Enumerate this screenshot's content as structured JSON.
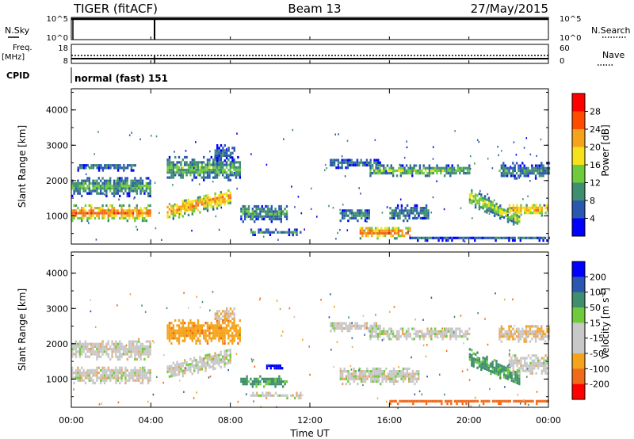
{
  "header": {
    "radar": "TIGER (fitACF)",
    "beam": "Beam 13",
    "date": "27/May/2015"
  },
  "top_panels": {
    "nsky_label": "N.Sky",
    "nsky_ticks": [
      "10^5",
      "10^0"
    ],
    "nsearch_label": "N.Search",
    "nsearch_ticks": [
      "10^5",
      "10^0"
    ],
    "freq_label": "Freq.",
    "freq_unit": "[MHz]",
    "freq_ticks": [
      "18",
      "8"
    ],
    "nave_label": "Nave",
    "nave_ticks": [
      "60",
      "0"
    ],
    "cpid_label": "CPID",
    "cpid_value": "normal (fast) 151"
  },
  "colors": {
    "power": [
      "#0000ff",
      "#2a58b0",
      "#3f8f6e",
      "#6fcb3c",
      "#f6e21a",
      "#f4a31a",
      "#f06a1a",
      "#e82a1a",
      "#ff0000"
    ],
    "velocity": [
      "#0000ff",
      "#2a58b0",
      "#3f8f6e",
      "#6fcb3c",
      "#c8c8c8",
      "#c8c8c8",
      "#f4a31a",
      "#f06a1a",
      "#e82a1a",
      "#ff0000"
    ]
  },
  "chart_data": [
    {
      "type": "heatmap",
      "name": "power",
      "xlabel": "",
      "ylabel": "Slant Range [km]",
      "x_ticks": [
        "00:00",
        "04:00",
        "08:00",
        "12:00",
        "16:00",
        "20:00",
        "00:00"
      ],
      "xlim": [
        0,
        24
      ],
      "y_ticks": [
        "1000",
        "2000",
        "3000",
        "4000"
      ],
      "ylim": [
        200,
        4600
      ],
      "colorbar": {
        "label": "Power [dB]",
        "ticks": [
          "4",
          "8",
          "12",
          "16",
          "20",
          "24",
          "28"
        ],
        "range": [
          0,
          32
        ]
      },
      "bands": [
        {
          "t": [
            0.0,
            4.0
          ],
          "center": 1050,
          "width": 450,
          "level": 26
        },
        {
          "t": [
            0.0,
            4.0
          ],
          "center": 1800,
          "width": 550,
          "level": 12
        },
        {
          "t": [
            0.3,
            3.2
          ],
          "center": 2350,
          "width": 200,
          "level": 9
        },
        {
          "t": [
            4.8,
            8.0
          ],
          "center": 1100,
          "width": 500,
          "level": 24,
          "slope": 130
        },
        {
          "t": [
            4.8,
            8.5
          ],
          "center": 2300,
          "width": 650,
          "level": 13
        },
        {
          "t": [
            7.2,
            8.2
          ],
          "center": 2750,
          "width": 450,
          "level": 8
        },
        {
          "t": [
            8.5,
            10.8
          ],
          "center": 1050,
          "width": 500,
          "level": 11
        },
        {
          "t": [
            9.0,
            11.5
          ],
          "center": 500,
          "width": 150,
          "level": 9
        },
        {
          "t": [
            13.0,
            15.5
          ],
          "center": 2450,
          "width": 250,
          "level": 8
        },
        {
          "t": [
            13.5,
            15.0
          ],
          "center": 1000,
          "width": 350,
          "level": 10
        },
        {
          "t": [
            14.5,
            17.0
          ],
          "center": 500,
          "width": 350,
          "level": 27
        },
        {
          "t": [
            16.0,
            18.0
          ],
          "center": 1050,
          "width": 450,
          "level": 9
        },
        {
          "t": [
            15.0,
            20.0
          ],
          "center": 2250,
          "width": 300,
          "level": 14
        },
        {
          "t": [
            20.0,
            22.5
          ],
          "center": 1500,
          "width": 450,
          "level": 16,
          "slope": -250
        },
        {
          "t": [
            22.0,
            24.0
          ],
          "center": 1150,
          "width": 350,
          "level": 24
        },
        {
          "t": [
            21.5,
            24.0
          ],
          "center": 2250,
          "width": 450,
          "level": 10
        },
        {
          "t": [
            17.0,
            24.0
          ],
          "center": 330,
          "width": 130,
          "level": 7
        }
      ]
    },
    {
      "type": "heatmap",
      "name": "velocity",
      "xlabel": "Time UT",
      "ylabel": "Slant Range [km]",
      "x_ticks": [
        "00:00",
        "04:00",
        "08:00",
        "12:00",
        "16:00",
        "20:00",
        "00:00"
      ],
      "xlim": [
        0,
        24
      ],
      "y_ticks": [
        "1000",
        "2000",
        "3000",
        "4000"
      ],
      "ylim": [
        200,
        4600
      ],
      "colorbar": {
        "label": "Velocity [m s^-1]",
        "ticks": [
          "200",
          "100",
          "50",
          "15",
          "-15",
          "-50",
          "-100",
          "-200"
        ],
        "range": [
          -250,
          250
        ]
      },
      "bands": [
        {
          "t": [
            0.0,
            4.0
          ],
          "center": 1100,
          "width": 500,
          "v": 0
        },
        {
          "t": [
            0.0,
            4.0
          ],
          "center": 1800,
          "width": 550,
          "v": 0
        },
        {
          "t": [
            4.8,
            8.0
          ],
          "center": 1200,
          "width": 500,
          "v": 0,
          "slope": 130
        },
        {
          "t": [
            4.8,
            8.5
          ],
          "center": 2300,
          "width": 650,
          "v": -60
        },
        {
          "t": [
            7.2,
            8.2
          ],
          "center": 2750,
          "width": 450,
          "v": -20
        },
        {
          "t": [
            8.5,
            10.8
          ],
          "center": 900,
          "width": 300,
          "v": 40
        },
        {
          "t": [
            9.8,
            10.6
          ],
          "center": 1300,
          "width": 200,
          "v": 220
        },
        {
          "t": [
            9.0,
            11.5
          ],
          "center": 500,
          "width": 150,
          "v": 0
        },
        {
          "t": [
            13.0,
            15.5
          ],
          "center": 2450,
          "width": 250,
          "v": 0
        },
        {
          "t": [
            13.5,
            17.5
          ],
          "center": 1050,
          "width": 450,
          "v": 0
        },
        {
          "t": [
            15.0,
            20.0
          ],
          "center": 2250,
          "width": 300,
          "v": 0
        },
        {
          "t": [
            20.0,
            22.5
          ],
          "center": 1600,
          "width": 450,
          "v": 40,
          "slope": -250
        },
        {
          "t": [
            22.0,
            24.0
          ],
          "center": 1400,
          "width": 550,
          "v": 0
        },
        {
          "t": [
            21.5,
            24.0
          ],
          "center": 2250,
          "width": 450,
          "v": -20
        },
        {
          "t": [
            16.0,
            24.0
          ],
          "center": 330,
          "width": 130,
          "v": -120
        }
      ]
    }
  ]
}
